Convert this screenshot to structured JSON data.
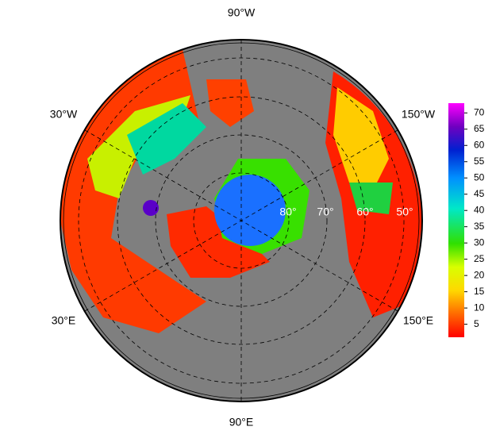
{
  "map": {
    "lon_labels": [
      "90°W",
      "30°W",
      "150°W",
      "30°E",
      "150°E",
      "90°E"
    ],
    "lat_labels": [
      "80°",
      "70°",
      "60°",
      "50°"
    ]
  },
  "colorbar": {
    "lim": [
      1,
      73
    ],
    "ticks": [
      5,
      10,
      15,
      20,
      25,
      30,
      35,
      40,
      45,
      50,
      55,
      60,
      65,
      70
    ]
  }
}
